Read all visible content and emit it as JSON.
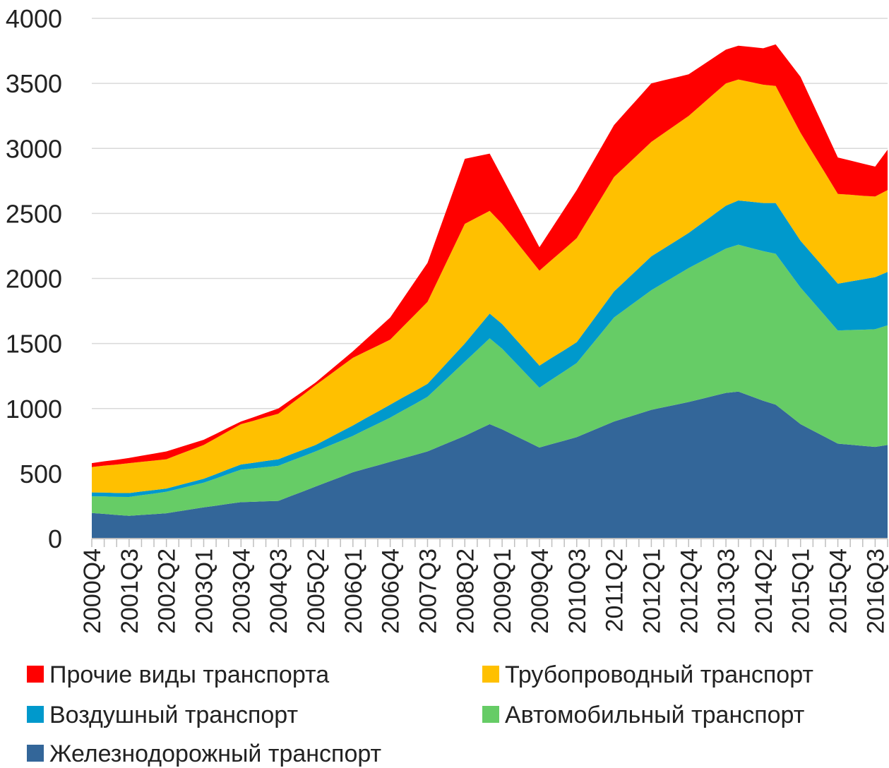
{
  "chart_data": {
    "type": "stacked_area",
    "categories": [
      "2000Q4",
      null,
      null,
      "2001Q3",
      null,
      null,
      "2002Q2",
      null,
      null,
      "2003Q1",
      null,
      null,
      "2003Q4",
      null,
      null,
      "2004Q3",
      null,
      null,
      "2005Q2",
      null,
      null,
      "2006Q1",
      null,
      null,
      "2006Q4",
      null,
      null,
      "2007Q3",
      null,
      null,
      "2008Q2",
      null,
      null,
      "2009Q1",
      null,
      null,
      "2009Q4",
      null,
      null,
      "2010Q3",
      null,
      null,
      "2011Q2",
      null,
      null,
      "2012Q1",
      null,
      null,
      "2012Q4",
      null,
      null,
      "2013Q3",
      null,
      null,
      "2014Q2",
      null,
      null,
      "2015Q1",
      null,
      null,
      "2015Q4",
      null,
      null,
      "2016Q3",
      null
    ],
    "series": [
      {
        "name": "Железнодорожный транспорт",
        "color": "#336699",
        "values": [
          197,
          190,
          182,
          175,
          182,
          188,
          195,
          210,
          225,
          240,
          253,
          267,
          280,
          283,
          287,
          290,
          327,
          363,
          400,
          437,
          473,
          510,
          537,
          563,
          590,
          617,
          643,
          670,
          710,
          750,
          790,
          835,
          880,
          840,
          793,
          747,
          700,
          727,
          753,
          780,
          820,
          860,
          900,
          930,
          960,
          990,
          1010,
          1030,
          1050,
          1073,
          1097,
          1120,
          1130,
          1095,
          1060,
          1030,
          955,
          880,
          830,
          780,
          730,
          722,
          713,
          705,
          720
        ]
      },
      {
        "name": "Автомобильный транспорт",
        "color": "#66cc66",
        "values": [
          128,
          134,
          139,
          145,
          152,
          158,
          165,
          173,
          182,
          190,
          210,
          230,
          250,
          257,
          263,
          270,
          270,
          270,
          270,
          273,
          277,
          280,
          300,
          320,
          340,
          367,
          393,
          420,
          470,
          520,
          570,
          615,
          660,
          620,
          567,
          513,
          460,
          497,
          533,
          570,
          647,
          723,
          800,
          840,
          880,
          920,
          957,
          993,
          1030,
          1057,
          1083,
          1110,
          1130,
          1140,
          1150,
          1160,
          1105,
          1050,
          990,
          930,
          870,
          882,
          893,
          905,
          920
        ]
      },
      {
        "name": "Воздушный транспорт",
        "color": "#0099cc",
        "values": [
          30,
          30,
          30,
          30,
          28,
          27,
          25,
          27,
          28,
          30,
          33,
          37,
          40,
          43,
          47,
          50,
          50,
          50,
          50,
          60,
          70,
          80,
          87,
          93,
          100,
          100,
          100,
          100,
          113,
          127,
          140,
          165,
          190,
          190,
          183,
          177,
          170,
          167,
          163,
          160,
          173,
          187,
          200,
          220,
          240,
          260,
          263,
          267,
          270,
          290,
          310,
          330,
          340,
          355,
          370,
          390,
          375,
          360,
          360,
          360,
          360,
          373,
          387,
          400,
          410
        ]
      },
      {
        "name": "Трубопроводный транспорт",
        "color": "#ffc000",
        "values": [
          195,
          207,
          218,
          230,
          228,
          227,
          225,
          237,
          248,
          260,
          277,
          293,
          310,
          323,
          337,
          350,
          387,
          423,
          460,
          480,
          500,
          520,
          513,
          507,
          500,
          543,
          587,
          630,
          727,
          823,
          920,
          855,
          790,
          770,
          757,
          743,
          730,
          753,
          777,
          800,
          827,
          853,
          880,
          880,
          880,
          880,
          887,
          893,
          900,
          913,
          927,
          940,
          930,
          920,
          910,
          900,
          865,
          830,
          783,
          737,
          690,
          667,
          643,
          620,
          630
        ]
      },
      {
        "name": "Прочие виды транспорта",
        "color": "#ff0000",
        "values": [
          30,
          33,
          37,
          40,
          47,
          53,
          60,
          53,
          47,
          40,
          33,
          27,
          20,
          27,
          33,
          40,
          33,
          27,
          20,
          30,
          40,
          50,
          90,
          130,
          170,
          213,
          257,
          300,
          367,
          433,
          500,
          470,
          440,
          360,
          300,
          240,
          180,
          243,
          307,
          370,
          380,
          390,
          400,
          417,
          433,
          450,
          407,
          363,
          320,
          300,
          280,
          260,
          260,
          270,
          280,
          320,
          375,
          430,
          380,
          330,
          280,
          263,
          247,
          230,
          310
        ]
      }
    ],
    "ylim": [
      0,
      4000
    ],
    "yticks": [
      0,
      500,
      1000,
      1500,
      2000,
      2500,
      3000,
      3500,
      4000
    ],
    "grid": true
  }
}
